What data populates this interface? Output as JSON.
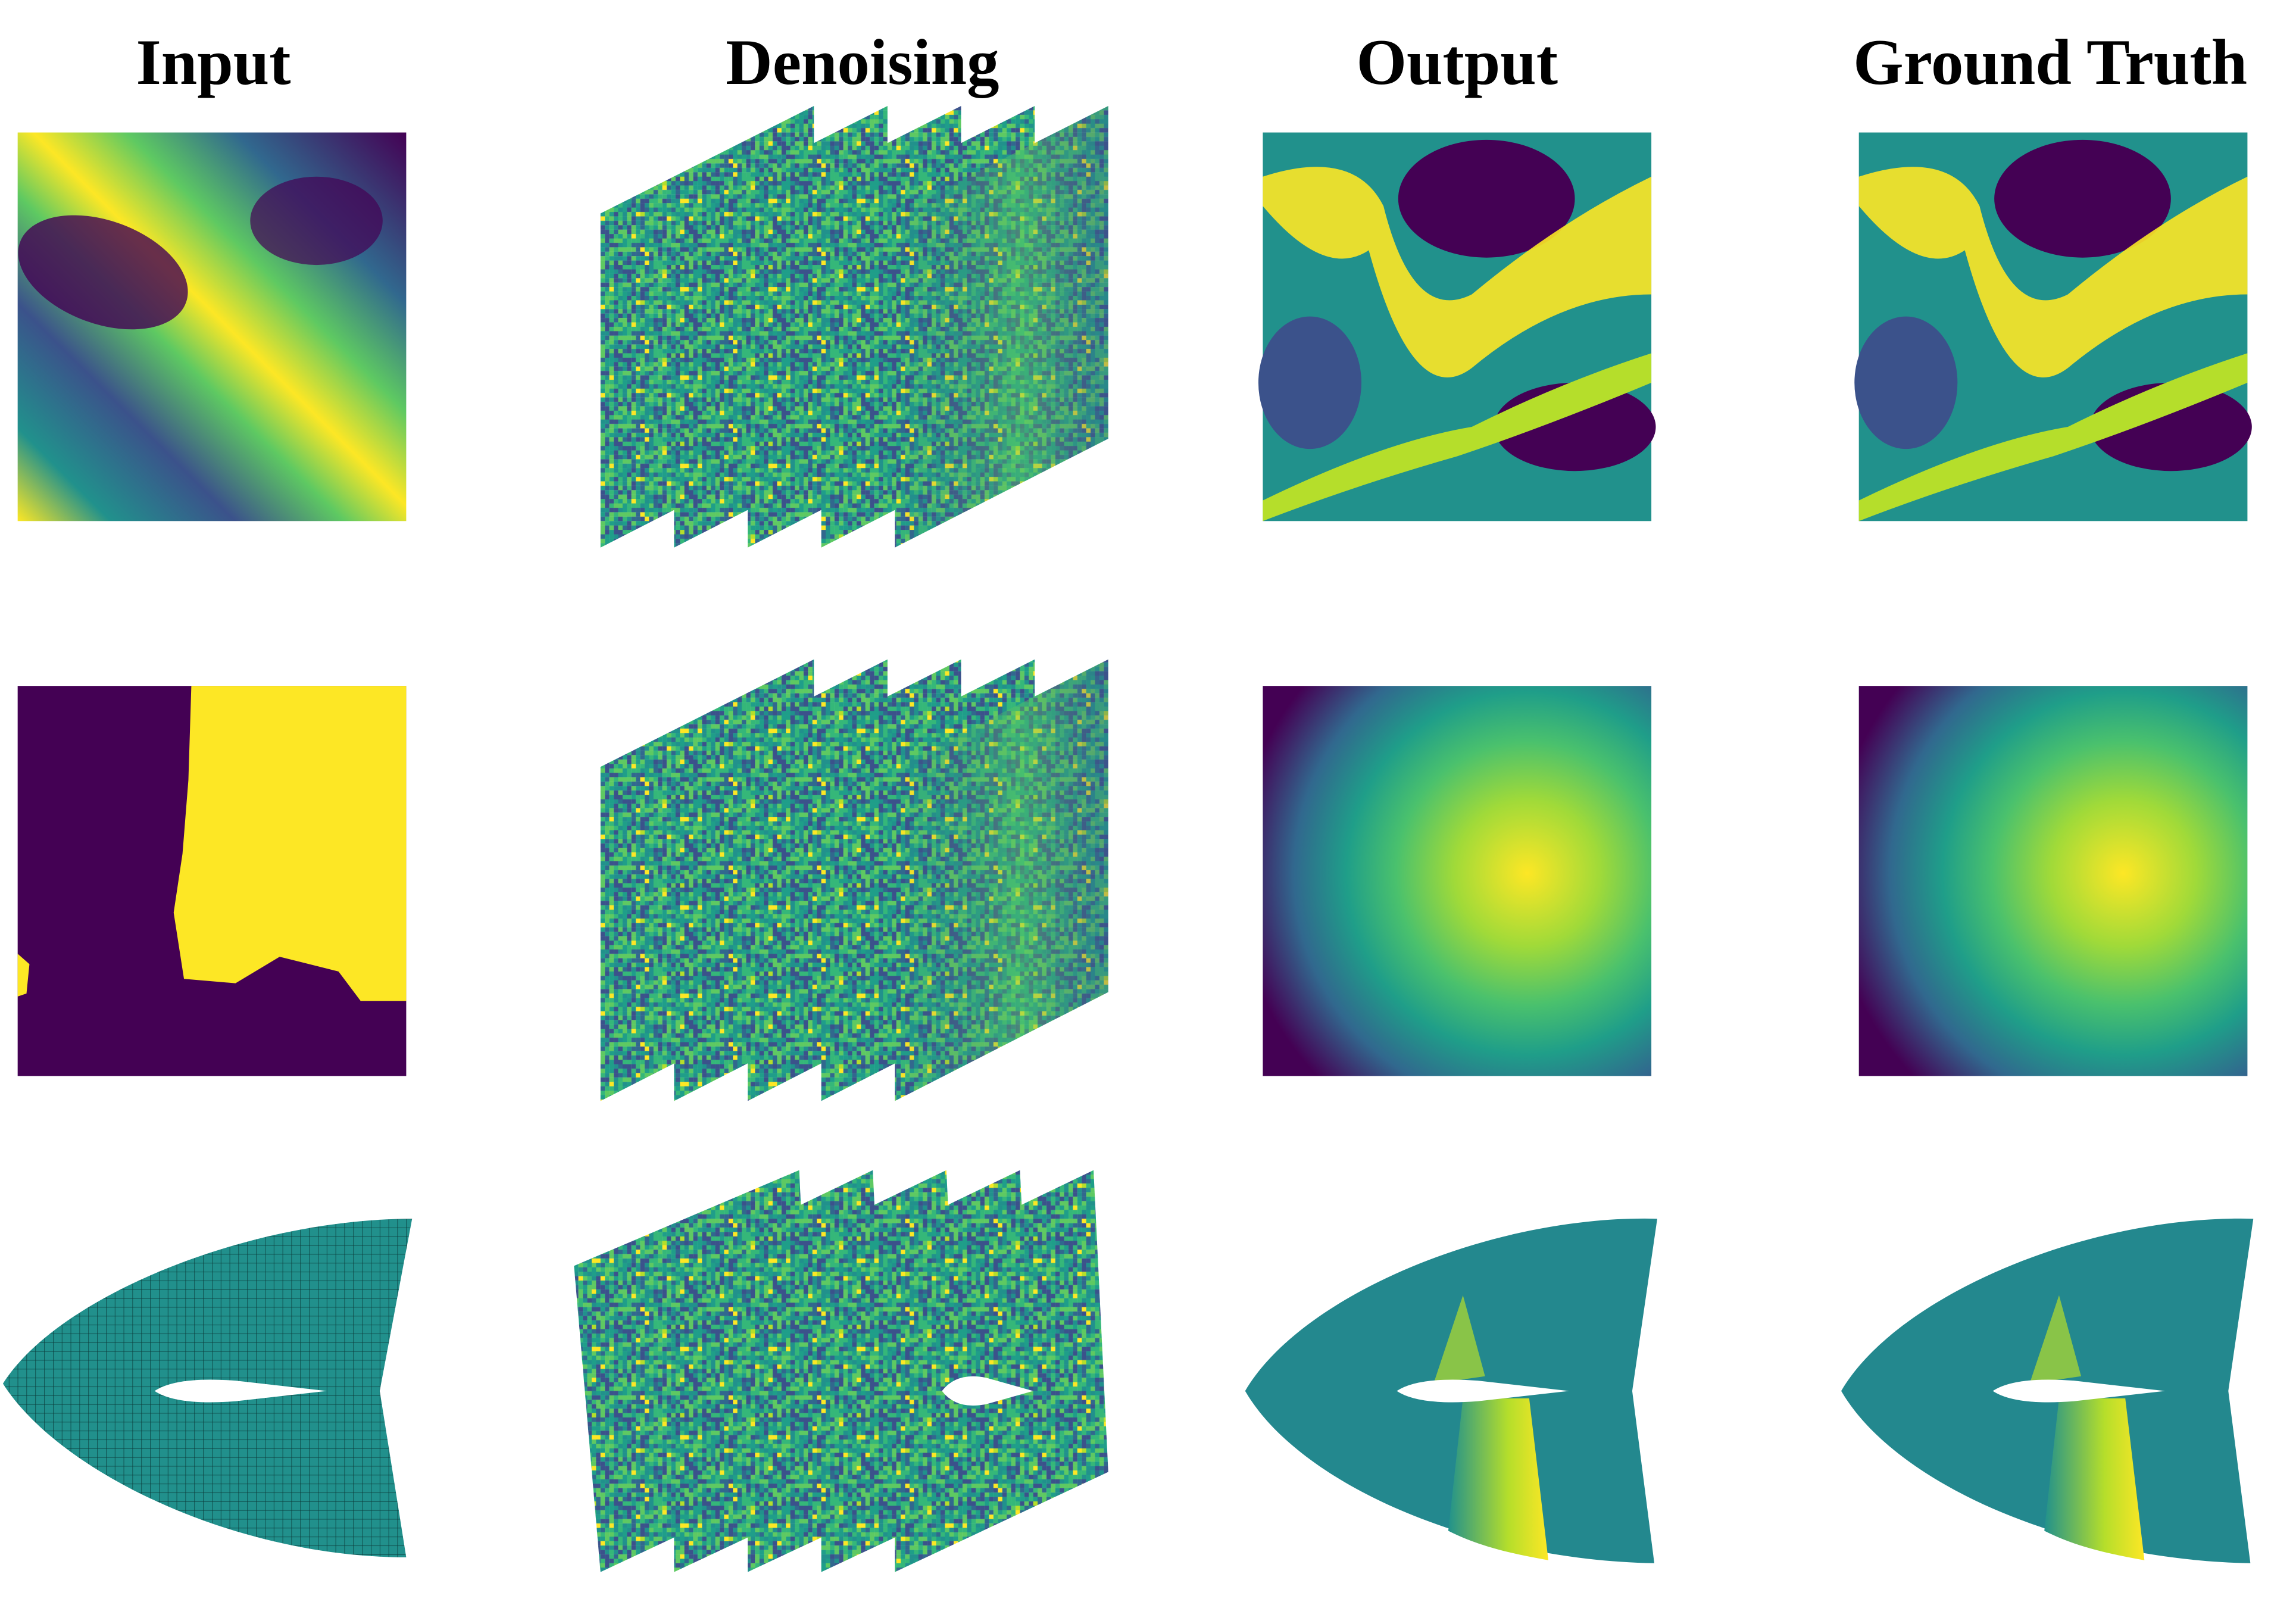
{
  "headers": [
    "Input",
    "Denoising",
    "Output",
    "Ground Truth"
  ]
}
